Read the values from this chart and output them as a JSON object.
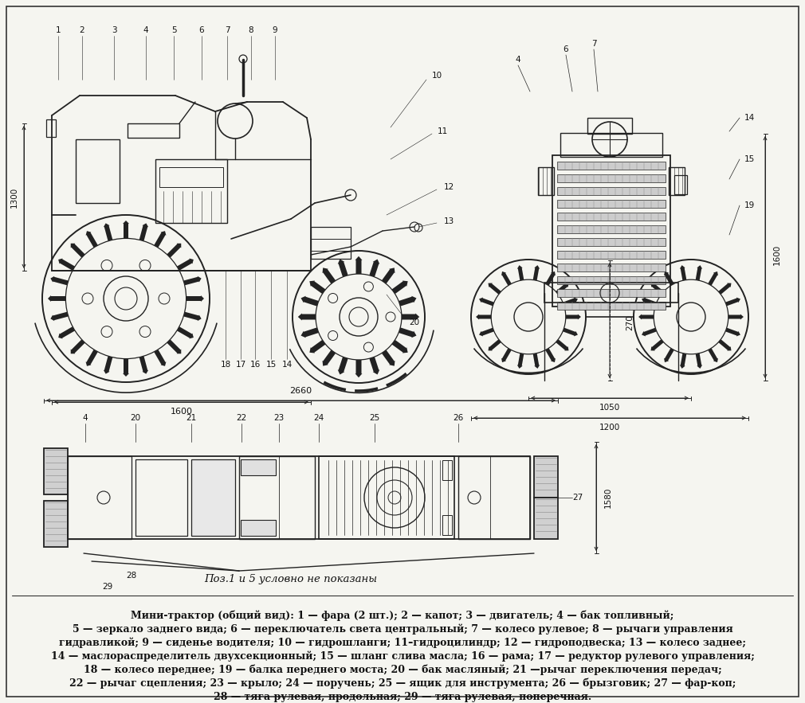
{
  "bg_color": "#f5f5f0",
  "fig_width": 10.1,
  "fig_height": 8.83,
  "caption_italic": "Поз.1 и 5 условно не показаны",
  "desc_line1": "Мини-трактор (общий вид): 1 — фара (2 шт.); 2 — капот; 3 — двигатель; 4 — бак топливный;",
  "desc_line2": "5 — зеркало заднего вида; 6 — переключатель света центральный; 7 — колесо рулевое; 8 — рычаги управления",
  "desc_line3": "гидравликой; 9 — сиденье водителя; 10 — гидрошланги; 11–гидроцилиндр; 12 — гидроподвеска; 13 — колесо заднее;",
  "desc_line4": "14 — маслораспределитель двухсекционный; 15 — шланг слива масла; 16 — рама; 17 — редуктор рулевого управления;",
  "desc_line5": "18 — колесо переднее; 19 — балка переднего моста; 20 — бак масляный; 21 —рычаг переключения передач;",
  "desc_line6": "22 — рычаг сцепления; 23 — крыло; 24 — поручень; 25 — ящик для инструмента; 26 — брызговик; 27 — фар-коп;",
  "desc_line7": "28 — тяга рулевая, продольная; 29 — тяга рулевая, поперечная.",
  "text_color": "#111111",
  "line_color": "#222222",
  "dim_1300": "1300",
  "dim_1600_side": "1600",
  "dim_2660": "2660",
  "dim_1580": "1580",
  "dim_1050": "1050",
  "dim_1200": "1200",
  "dim_1600_front": "1600",
  "dim_270": "270"
}
